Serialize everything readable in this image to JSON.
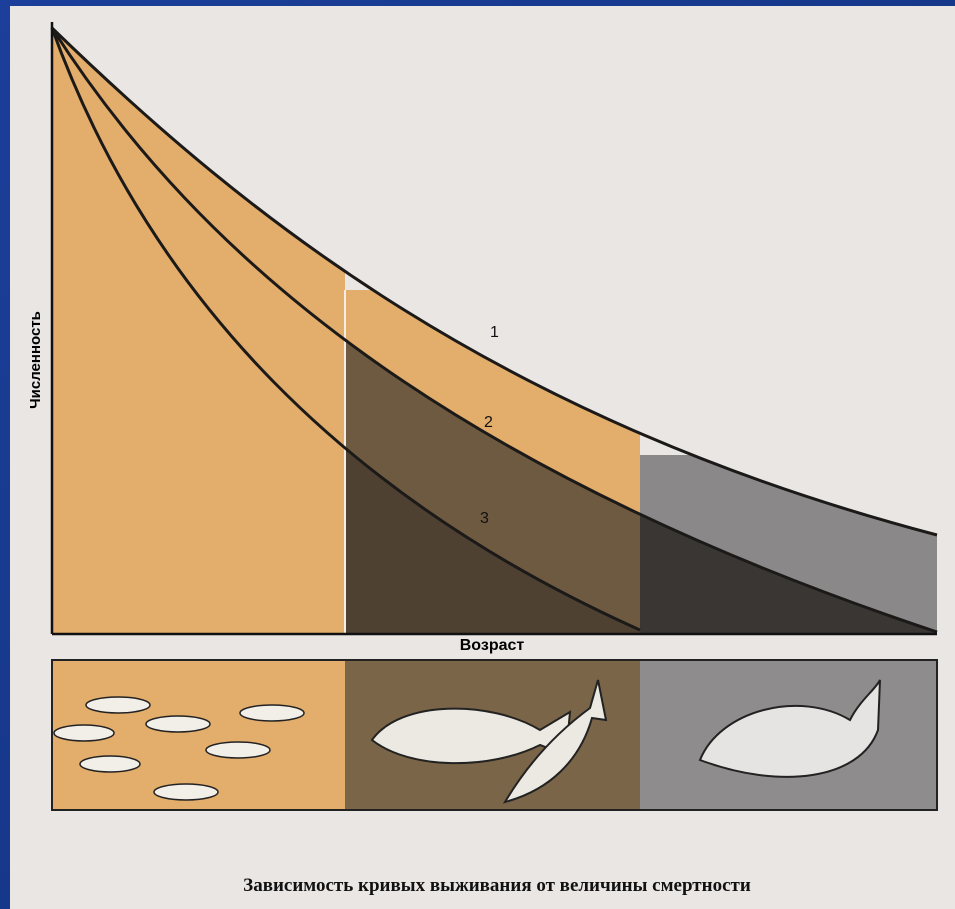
{
  "axis_labels": {
    "y": "Численность",
    "x": "Возраст"
  },
  "curve_labels": [
    "1",
    "2",
    "3"
  ],
  "caption": "Зависимость кривых выживания от величины смертности"
}
